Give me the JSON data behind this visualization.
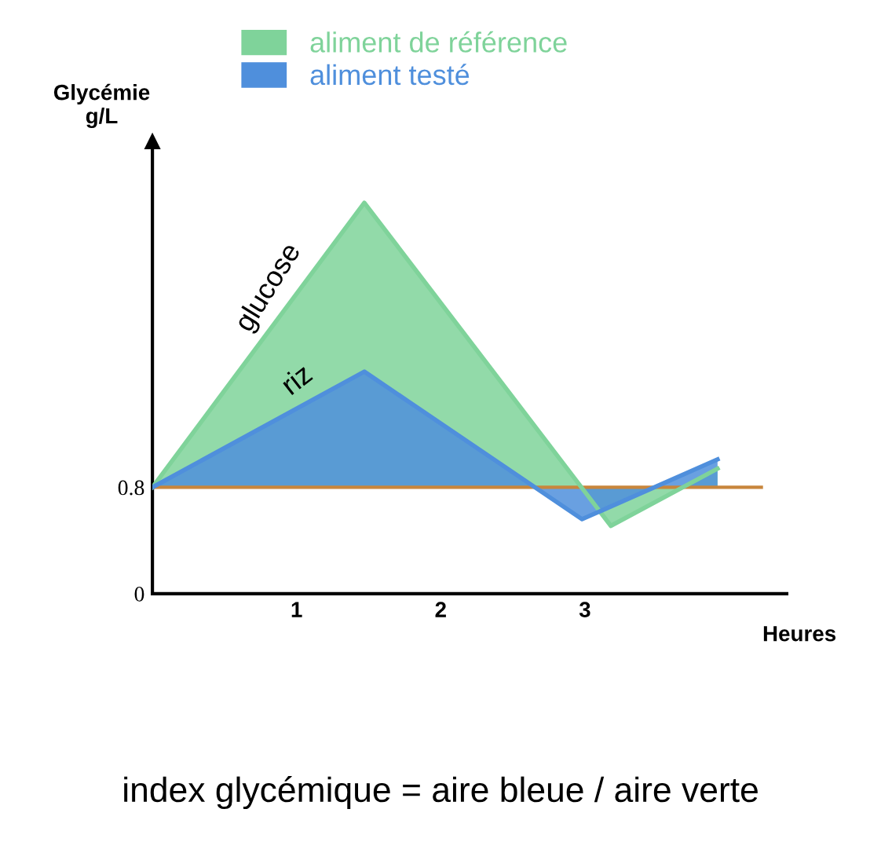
{
  "chart_data": {
    "type": "area",
    "xlabel": "Heures",
    "ylabel": "Glycémie\ng/L",
    "xlim": [
      0,
      4.4
    ],
    "ylim": [
      0,
      3.4
    ],
    "xticks": [
      1,
      2,
      3
    ],
    "yticks": [
      0,
      0.8
    ],
    "series": [
      {
        "name": "aliment de référence",
        "color": "#7fd39a",
        "x": [
          0,
          1.47,
          3.18,
          3.92
        ],
        "values": [
          0.8,
          2.94,
          0.51,
          0.94
        ]
      },
      {
        "name": "aliment testé",
        "color": "#4f8fdc",
        "x": [
          0,
          1.47,
          2.98,
          3.92
        ],
        "values": [
          0.8,
          1.67,
          0.56,
          1.01
        ]
      }
    ],
    "ref_lines": [
      {
        "axis": "y",
        "value": 0.8,
        "color": "#c8863c"
      }
    ],
    "legend": "top",
    "annotations": [
      {
        "text": "glucose",
        "x": 0.9,
        "y": 2.15
      },
      {
        "text": "riz",
        "x": 1.1,
        "y": 1.45
      },
      "index glycémique = aire bleue / aire verte"
    ]
  }
}
